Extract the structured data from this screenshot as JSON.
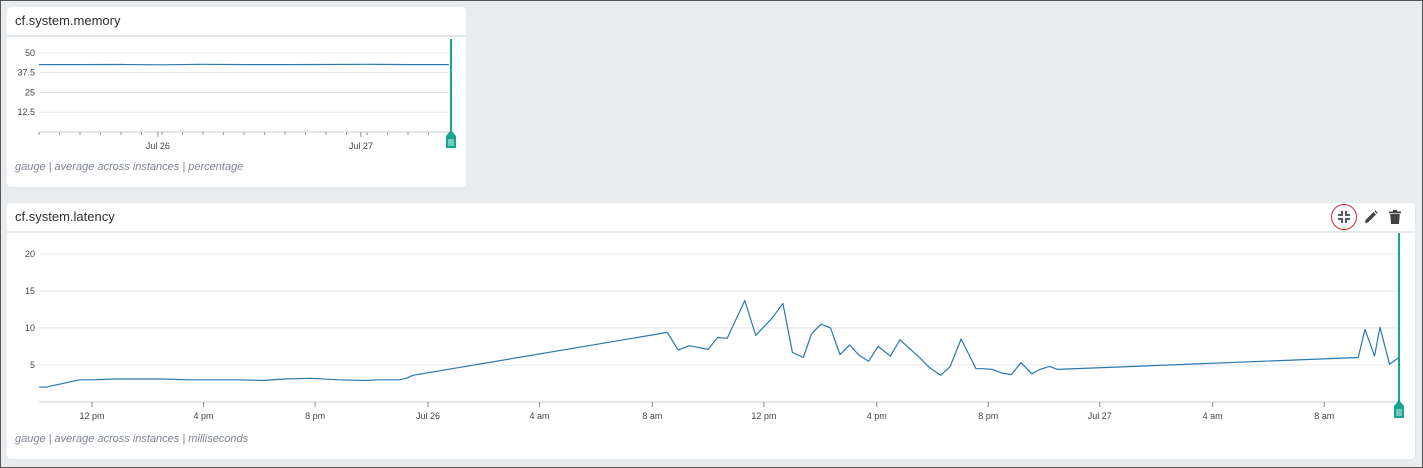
{
  "panels": [
    {
      "id": "memory",
      "title": "cf.system.memory",
      "footer": "gauge | average across instances | percentage"
    },
    {
      "id": "latency",
      "title": "cf.system.latency",
      "footer": "gauge | average across instances | milliseconds",
      "actions": [
        {
          "name": "collapse-icon",
          "label": "collapse"
        },
        {
          "name": "pencil-icon",
          "label": "edit"
        },
        {
          "name": "trash-icon",
          "label": "delete"
        }
      ]
    }
  ],
  "colors": {
    "line": "#2b78ae",
    "marker": "#16a593",
    "grid": "#e3e5e7",
    "highlight": "#e0262b"
  },
  "chart_data": [
    {
      "type": "line",
      "title": "cf.system.memory",
      "ylim": [
        0,
        55
      ],
      "yticks": [
        12.5,
        25,
        37.5,
        50
      ],
      "ytick_labels": [
        "12.5",
        "25",
        "37.5",
        "50"
      ],
      "xlim": [
        0,
        100
      ],
      "xticks": [
        {
          "x": 29,
          "label": "Jul 26"
        },
        {
          "x": 78.5,
          "label": "Jul 27"
        }
      ],
      "x": [
        0,
        10,
        20,
        30,
        40,
        50,
        60,
        70,
        80,
        90,
        100
      ],
      "values": [
        42.6,
        42.6,
        42.7,
        42.5,
        42.8,
        42.6,
        42.6,
        42.7,
        42.8,
        42.6,
        42.6
      ]
    },
    {
      "type": "line",
      "title": "cf.system.latency",
      "ylim": [
        0,
        22
      ],
      "yticks": [
        5,
        10,
        15,
        20
      ],
      "ytick_labels": [
        "5",
        "10",
        "15",
        "20"
      ],
      "xlim": [
        0,
        100
      ],
      "xticks": [
        {
          "x": 3.9,
          "label": "12 pm"
        },
        {
          "x": 12.1,
          "label": "4 pm"
        },
        {
          "x": 20.3,
          "label": "8 pm"
        },
        {
          "x": 28.6,
          "label": "Jul 26"
        },
        {
          "x": 36.8,
          "label": "4 am"
        },
        {
          "x": 45.1,
          "label": "8 am"
        },
        {
          "x": 53.3,
          "label": "12 pm"
        },
        {
          "x": 61.6,
          "label": "4 pm"
        },
        {
          "x": 69.8,
          "label": "8 pm"
        },
        {
          "x": 78.0,
          "label": "Jul 27"
        },
        {
          "x": 86.3,
          "label": "4 am"
        },
        {
          "x": 94.5,
          "label": "8 am"
        }
      ],
      "x": [
        0,
        0.5,
        1.0,
        3.0,
        4.0,
        5.5,
        7.0,
        9.0,
        11.0,
        13.0,
        14.7,
        16.5,
        18.0,
        20.0,
        22.0,
        24.0,
        25.0,
        26.5,
        27.0,
        27.5,
        46.2,
        47.0,
        47.8,
        49.2,
        49.9,
        50.6,
        51.9,
        52.7,
        53.9,
        54.7,
        55.4,
        56.2,
        56.8,
        57.5,
        58.2,
        58.9,
        59.6,
        60.3,
        61.0,
        61.7,
        62.6,
        63.3,
        64.8,
        65.5,
        66.3,
        67.0,
        67.8,
        68.9,
        69.4,
        70.1,
        70.8,
        71.5,
        72.2,
        73.0,
        73.6,
        74.3,
        74.9,
        97.0,
        97.5,
        98.2,
        98.6,
        99.3,
        100
      ],
      "values": [
        2.0,
        2.0,
        2.2,
        3.0,
        3.0,
        3.1,
        3.1,
        3.1,
        3.0,
        3.0,
        3.0,
        2.9,
        3.1,
        3.2,
        3.0,
        2.9,
        3.0,
        3.0,
        3.2,
        3.6,
        9.4,
        7.0,
        7.6,
        7.1,
        8.7,
        8.6,
        13.7,
        9.0,
        11.3,
        13.3,
        6.7,
        6.0,
        9.2,
        10.5,
        10.0,
        6.4,
        7.7,
        6.3,
        5.5,
        7.5,
        6.2,
        8.4,
        5.9,
        4.6,
        3.6,
        4.8,
        8.5,
        4.5,
        4.5,
        4.4,
        3.9,
        3.7,
        5.3,
        3.8,
        4.4,
        4.8,
        4.4,
        6.0,
        9.8,
        6.2,
        10.1,
        5.1,
        6.0
      ]
    }
  ]
}
